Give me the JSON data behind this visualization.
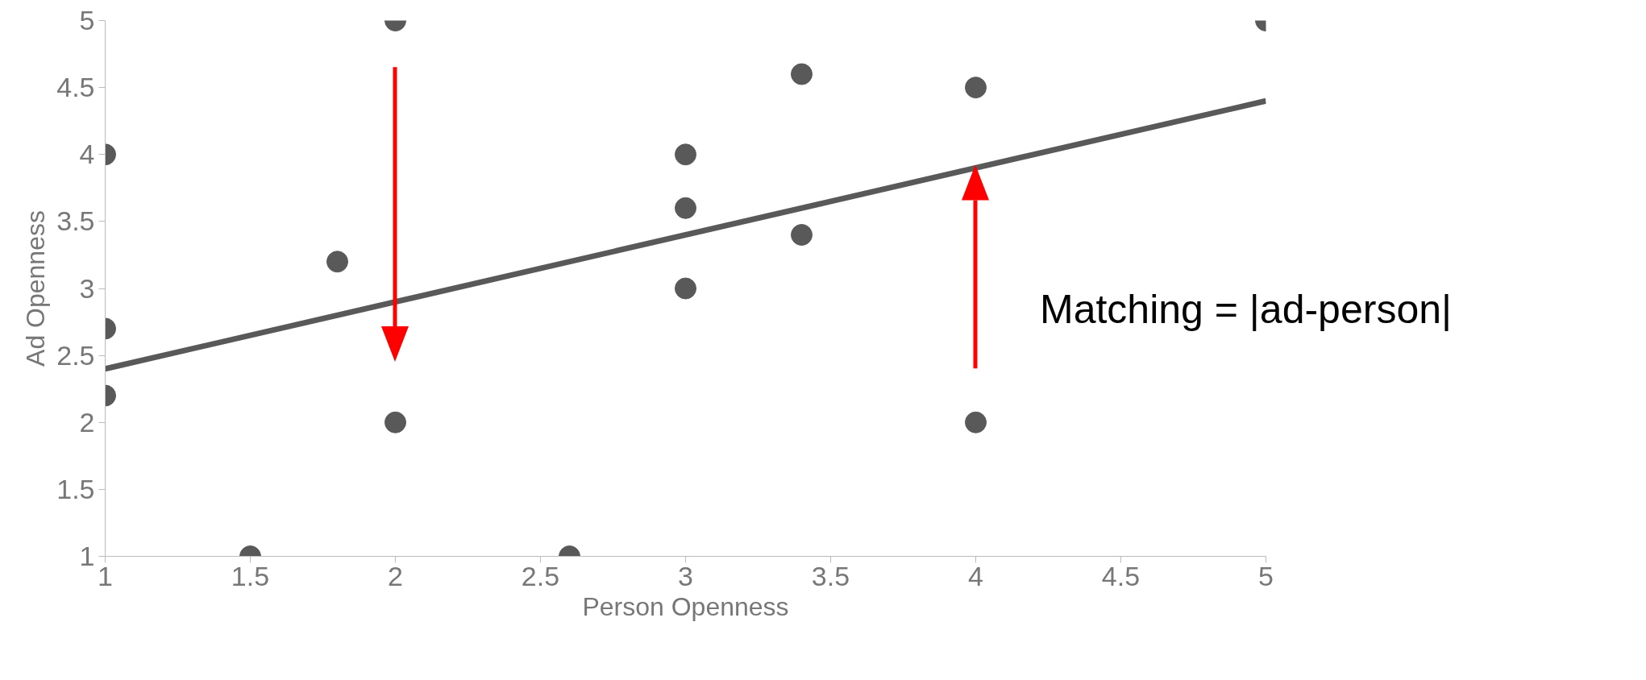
{
  "chart_data": {
    "type": "scatter",
    "xlabel": "Person Openness",
    "ylabel": "Ad Openness",
    "xlim": [
      1,
      5
    ],
    "ylim": [
      1,
      5
    ],
    "xticks": [
      1,
      1.5,
      2,
      2.5,
      3,
      3.5,
      4,
      4.5,
      5
    ],
    "yticks": [
      1,
      1.5,
      2,
      2.5,
      3,
      3.5,
      4,
      4.5,
      5
    ],
    "grid": false,
    "marker": "circle",
    "series": [
      {
        "color": "#595959",
        "x": [
          1,
          1,
          1,
          1.5,
          1.8,
          2,
          2,
          2.6,
          3,
          3,
          3,
          3.4,
          3.4,
          4,
          4,
          5
        ],
        "values": [
          4,
          2.7,
          2.2,
          1,
          3.2,
          5,
          2,
          1,
          4,
          3.6,
          3,
          4.6,
          3.4,
          4.5,
          2,
          5
        ]
      },
      {
        "type": "line",
        "marker": "none",
        "color": "#595959",
        "x": [
          1,
          5
        ],
        "values": [
          2.4,
          4.4
        ]
      }
    ],
    "annotations": [
      "Matching = |ad-person|"
    ]
  }
}
